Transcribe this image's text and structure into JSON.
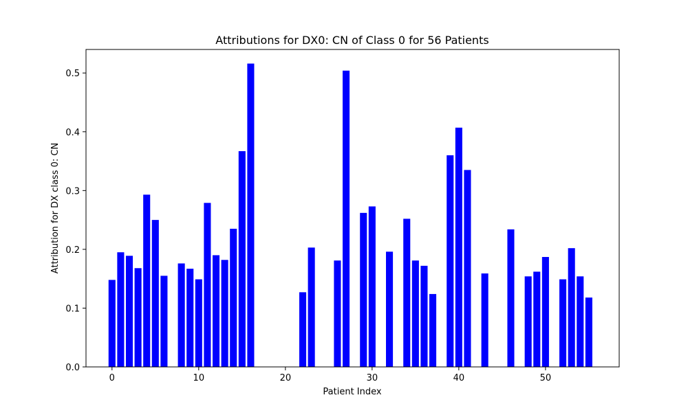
{
  "chart_data": {
    "type": "bar",
    "title": "Attributions for DX0: CN of Class 0 for 56 Patients",
    "xlabel": "Patient Index",
    "ylabel": "Attribution for DX class 0: CN",
    "xlim": [
      -3,
      58.5
    ],
    "ylim": [
      0,
      0.54
    ],
    "xticks": [
      0,
      10,
      20,
      30,
      40,
      50
    ],
    "xtick_labels": [
      "0",
      "10",
      "20",
      "30",
      "40",
      "50"
    ],
    "yticks": [
      0.0,
      0.1,
      0.2,
      0.3,
      0.4,
      0.5
    ],
    "ytick_labels": [
      "0.0",
      "0.1",
      "0.2",
      "0.3",
      "0.4",
      "0.5"
    ],
    "grid": false,
    "bar_color": "#0000ff",
    "x": [
      0,
      1,
      2,
      3,
      4,
      5,
      6,
      8,
      9,
      10,
      11,
      12,
      13,
      14,
      15,
      16,
      22,
      23,
      26,
      27,
      29,
      30,
      32,
      34,
      35,
      36,
      37,
      39,
      40,
      41,
      43,
      46,
      48,
      49,
      50,
      52,
      53,
      54,
      55
    ],
    "values": [
      0.148,
      0.195,
      0.189,
      0.168,
      0.293,
      0.25,
      0.155,
      0.176,
      0.167,
      0.149,
      0.279,
      0.19,
      0.182,
      0.235,
      0.367,
      0.516,
      0.127,
      0.203,
      0.181,
      0.504,
      0.262,
      0.273,
      0.196,
      0.252,
      0.181,
      0.172,
      0.124,
      0.36,
      0.407,
      0.335,
      0.159,
      0.234,
      0.154,
      0.162,
      0.187,
      0.149,
      0.202,
      0.154,
      0.118
    ]
  }
}
